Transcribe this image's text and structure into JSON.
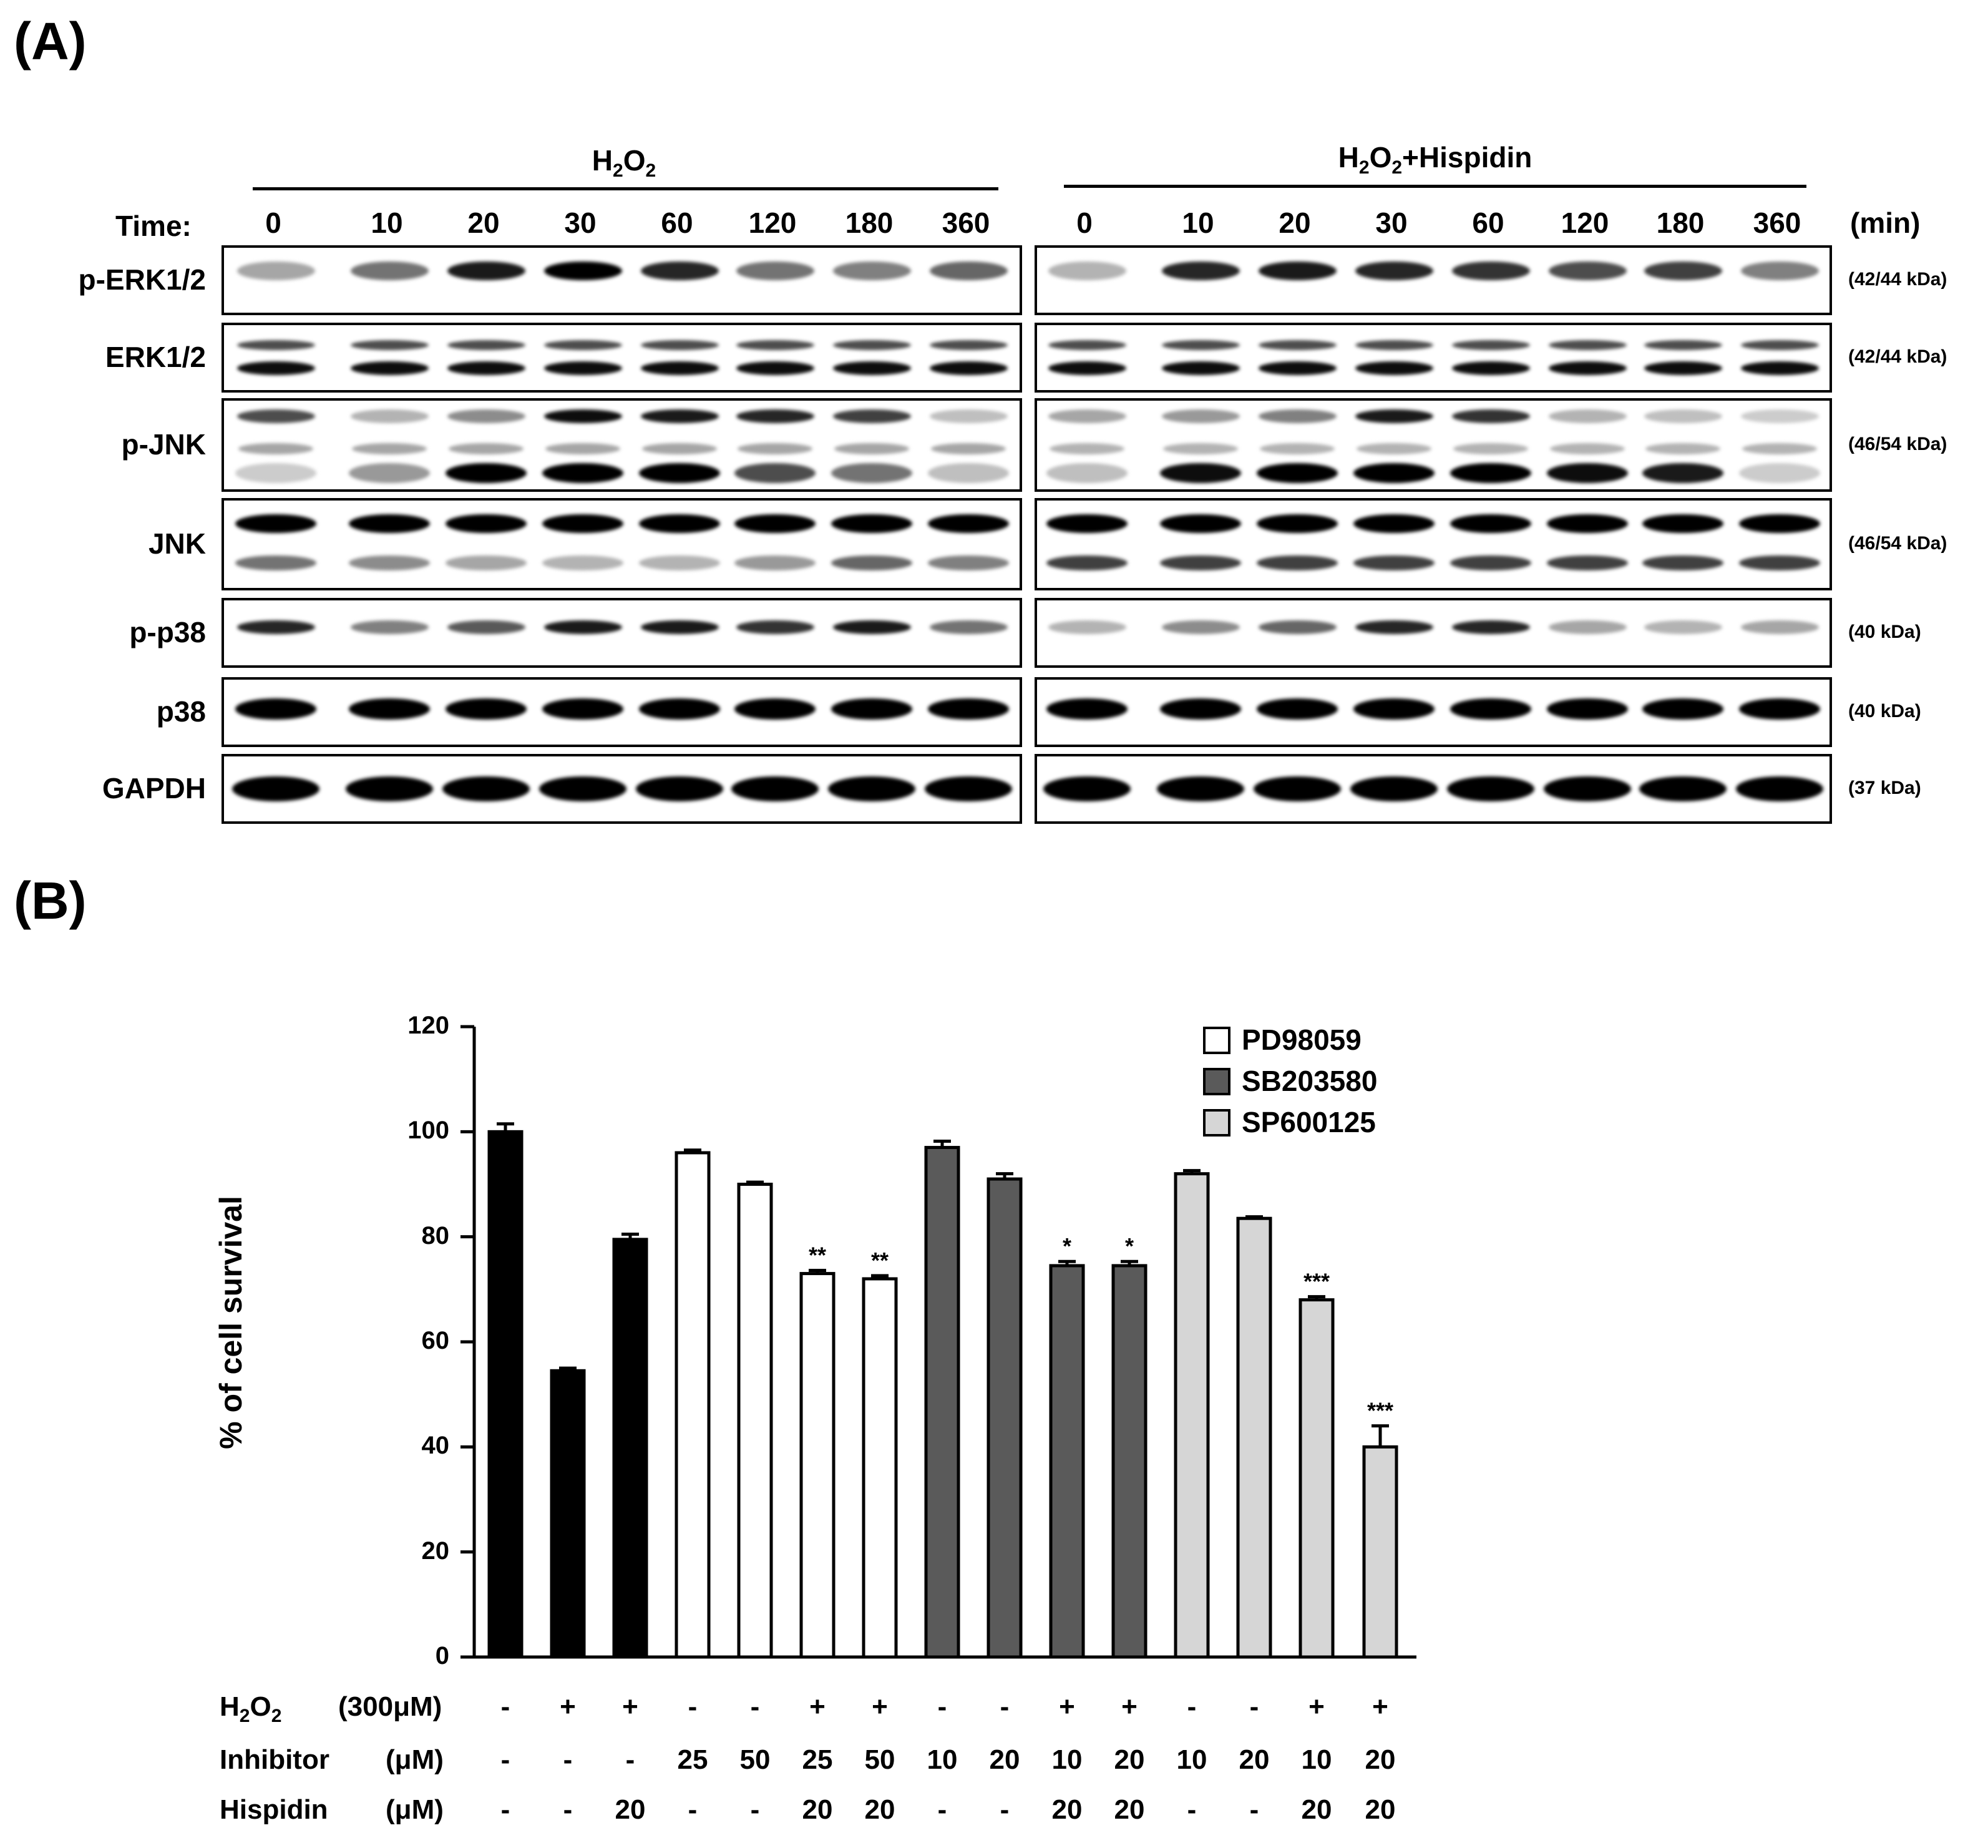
{
  "panel_a": {
    "letter": "(A)",
    "conditions": [
      {
        "prefix": "H",
        "sub1": "2",
        "mid": "O",
        "sub2": "2",
        "suffix": ""
      },
      {
        "prefix": "H",
        "sub1": "2",
        "mid": "O",
        "sub2": "2",
        "suffix": "+Hispidin"
      }
    ],
    "time_label": "Time:",
    "time_unit": "(min)",
    "time_points": [
      "0",
      "10",
      "20",
      "30",
      "60",
      "120",
      "180",
      "360"
    ],
    "blots": [
      {
        "label": "p-ERK1/2",
        "kda": "(42/44 kDa)"
      },
      {
        "label": "ERK1/2",
        "kda": "(42/44 kDa)"
      },
      {
        "label": "p-JNK",
        "kda": "(46/54 kDa)"
      },
      {
        "label": "JNK",
        "kda": "(46/54 kDa)"
      },
      {
        "label": "p-p38",
        "kda": "(40 kDa)"
      },
      {
        "label": "p38",
        "kda": "(40 kDa)"
      },
      {
        "label": "GAPDH",
        "kda": "(37 kDa)"
      }
    ]
  },
  "panel_b": {
    "letter": "(B)",
    "legend": [
      {
        "name": "PD98059",
        "color": "#ffffff"
      },
      {
        "name": "SB203580",
        "color": "#5a5a5a"
      },
      {
        "name": "SP600125",
        "color": "#d6d6d6"
      }
    ],
    "treatment_rows": [
      {
        "label_main": "H",
        "label_sub": "2",
        "label_main2": "O",
        "label_sub2": "2",
        "unit": "(300μM)",
        "values": [
          "-",
          "+",
          "+",
          "-",
          "-",
          "+",
          "+",
          "-",
          "-",
          "+",
          "+",
          "-",
          "-",
          "+",
          "+"
        ]
      },
      {
        "label_main": "Inhibitor",
        "unit": "(μM)",
        "values": [
          "-",
          "-",
          "-",
          "25",
          "50",
          "25",
          "50",
          "10",
          "20",
          "10",
          "20",
          "10",
          "20",
          "10",
          "20"
        ]
      },
      {
        "label_main": "Hispidin",
        "unit": "(μM)",
        "values": [
          "-",
          "-",
          "20",
          "-",
          "-",
          "20",
          "20",
          "-",
          "-",
          "20",
          "20",
          "-",
          "-",
          "20",
          "20"
        ]
      }
    ]
  },
  "chart_data": {
    "type": "bar",
    "title": "",
    "xlabel": "",
    "ylabel": "% of cell survival",
    "ylim": [
      0,
      120
    ],
    "yticks": [
      0,
      20,
      40,
      60,
      80,
      100,
      120
    ],
    "values": [
      100,
      54.5,
      79.5,
      96,
      90,
      73,
      72,
      97,
      91,
      74.5,
      74.5,
      92,
      83.5,
      68,
      40
    ],
    "errors": [
      1.5,
      0.5,
      1,
      0.5,
      0.4,
      0.6,
      0.6,
      1.2,
      1,
      0.8,
      0.8,
      0.6,
      0.3,
      0.6,
      4
    ],
    "bar_colors": [
      "#000000",
      "#000000",
      "#000000",
      "#ffffff",
      "#ffffff",
      "#ffffff",
      "#ffffff",
      "#5a5a5a",
      "#5a5a5a",
      "#5a5a5a",
      "#5a5a5a",
      "#d6d6d6",
      "#d6d6d6",
      "#d6d6d6",
      "#d6d6d6"
    ],
    "significance": [
      "",
      "",
      "",
      "",
      "",
      "**",
      "**",
      "",
      "",
      "*",
      "*",
      "",
      "",
      "***",
      "***"
    ]
  }
}
